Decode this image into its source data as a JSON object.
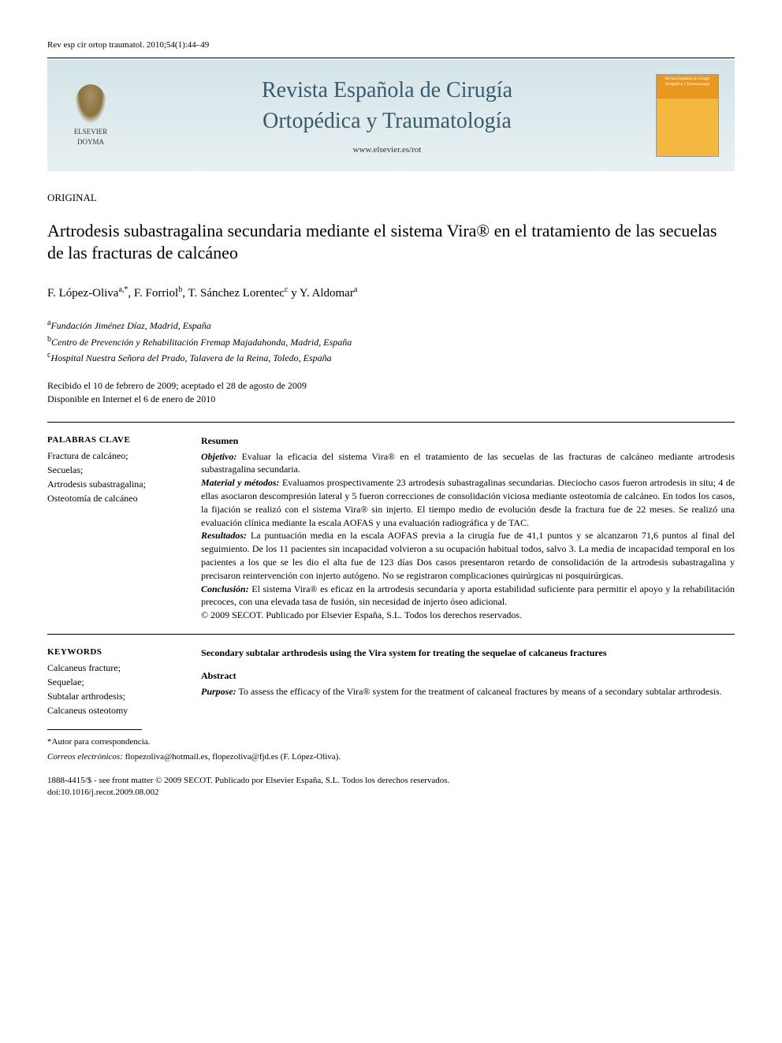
{
  "citation": "Rev esp cir ortop traumatol. 2010;54(1):44–49",
  "journal": {
    "title_line1": "Revista Española de Cirugía",
    "title_line2": "Ortopédica y Traumatología",
    "url": "www.elsevier.es/rot",
    "publisher_logo_text": "ELSEVIER DOYMA",
    "cover_title": "Revista Española de Cirugía Ortopédica y Traumatología"
  },
  "section_label": "ORIGINAL",
  "article_title": "Artrodesis subastragalina secundaria mediante el sistema Vira® en el tratamiento de las secuelas de las fracturas de calcáneo",
  "authors": "F. López-Olivaa,*, F. Forriolb, T. Sánchez Lorentecc y Y. Aldomara",
  "affiliations": {
    "a": "aFundación Jiménez Díaz, Madrid, España",
    "b": "bCentro de Prevención y Rehabilitación Fremap Majadahonda, Madrid, España",
    "c": "cHospital Nuestra Señora del Prado, Talavera de la Reina, Toledo, España"
  },
  "dates": {
    "received": "Recibido el 10 de febrero de 2009; aceptado el 28 de agosto de 2009",
    "online": "Disponible en Internet el 6 de enero de 2010"
  },
  "spanish": {
    "keywords_heading": "PALABRAS CLAVE",
    "keywords": "Fractura de calcáneo;\nSecuelas;\nArtrodesis subastragalina;\nOsteotomía de calcáneo",
    "abstract_heading": "Resumen",
    "objetivo": "Evaluar la eficacia del sistema Vira® en el tratamiento de las secuelas de las fracturas de calcáneo mediante artrodesis subastragalina secundaria.",
    "material": "Evaluamos prospectivamente 23 artrodesis subastragalinas secundarias. Dieciocho casos fueron artrodesis in situ; 4 de ellas asociaron descompresión lateral y 5 fueron correcciones de consolidación viciosa mediante osteotomía de calcáneo. En todos los casos, la fijación se realizó con el sistema Vira® sin injerto. El tiempo medio de evolución desde la fractura fue de 22 meses. Se realizó una evaluación clínica mediante la escala AOFAS y una evaluación radiográfica y de TAC.",
    "resultados": "La puntuación media en la escala AOFAS previa a la cirugía fue de 41,1 puntos y se alcanzaron 71,6 puntos al final del seguimiento. De los 11 pacientes sin incapacidad volvieron a su ocupación habitual todos, salvo 3. La media de incapacidad temporal en los pacientes a los que se les dio el alta fue de 123 días Dos casos presentaron retardo de consolidación de la artrodesis subastragalina y precisaron reintervención con injerto autógeno. No se registraron complicaciones quirúrgicas ni posquirúrgicas.",
    "conclusion": "El sistema Vira® es eficaz en la artrodesis secundaria y aporta estabilidad suficiente para permitir el apoyo y la rehabilitación precoces, con una elevada tasa de fusión, sin necesidad de injerto óseo adicional.",
    "copyright": "© 2009 SECOT. Publicado por Elsevier España, S.L. Todos los derechos reservados."
  },
  "english": {
    "keywords_heading": "KEYWORDS",
    "keywords": "Calcaneus fracture;\nSequelae;\nSubtalar arthrodesis;\nCalcaneus osteotomy",
    "title": "Secondary subtalar arthrodesis using the Vira system for treating the sequelae of calcaneus fractures",
    "abstract_heading": "Abstract",
    "purpose": "To assess the efficacy of the Vira® system for the treatment of calcaneal fractures by means of a secondary subtalar arthrodesis."
  },
  "footnotes": {
    "corresponding": "*Autor para correspondencia.",
    "emails_label": "Correos electrónicos:",
    "emails": "flopezoliva@hotmail.es, flopezoliva@fjd.es (F. López-Oliva)."
  },
  "bottom": {
    "issn": "1888-4415/$ - see front matter © 2009 SECOT. Publicado por Elsevier España, S.L. Todos los derechos reservados.",
    "doi": "doi:10.1016/j.recot.2009.08.002"
  },
  "labels": {
    "objetivo": "Objetivo:",
    "material": "Material y métodos:",
    "resultados": "Resultados:",
    "conclusion": "Conclusión:",
    "purpose": "Purpose:"
  }
}
